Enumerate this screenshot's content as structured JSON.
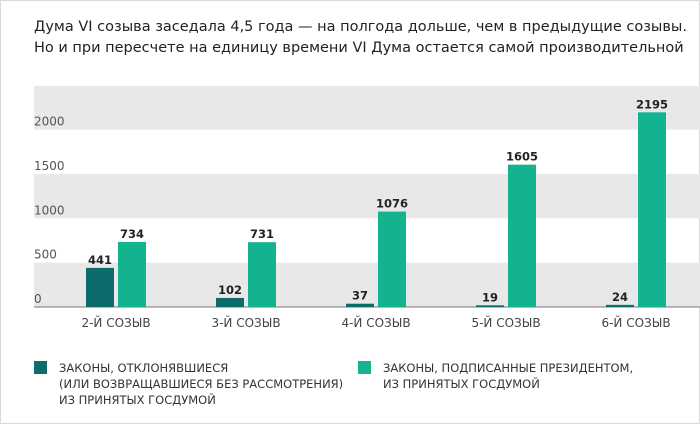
{
  "title_lines": [
    "Дума VI созыва заседала 4,5 года — на полгода дольше, чем в предыдущие созывы.",
    "Но и при пересчете на единицу времени VI Дума остается самой производительной"
  ],
  "colors": {
    "rejected": "#0d6b6b",
    "signed": "#14b38f",
    "band": "#e8e8e8",
    "axis": "#777777"
  },
  "chart_data": {
    "type": "bar",
    "categories": [
      "2-Й СОЗЫВ",
      "3-Й СОЗЫВ",
      "4-Й СОЗЫВ",
      "5-Й СОЗЫВ",
      "6-Й СОЗЫВ"
    ],
    "series": [
      {
        "name": "ЗАКОНЫ, ОТКЛОНЯВШИЕСЯ (ИЛИ ВОЗВРАЩАВШИЕСЯ БЕЗ РАССМОТРЕНИЯ) ИЗ ПРИНЯТЫХ ГОСДУМОЙ",
        "values": [
          441,
          102,
          37,
          19,
          24
        ]
      },
      {
        "name": "ЗАКОНЫ, ПОДПИСАННЫЕ ПРЕЗИДЕНТОМ, ИЗ ПРИНЯТЫХ ГОСДУМОЙ",
        "values": [
          734,
          731,
          1076,
          1605,
          2195
        ]
      }
    ],
    "yticks": [
      0,
      500,
      1000,
      1500,
      2000
    ],
    "ylim": [
      0,
      2400
    ],
    "grid": "alternating bands",
    "legend_position": "bottom"
  },
  "legend": {
    "rejected_lines": [
      "ЗАКОНЫ, ОТКЛОНЯВШИЕСЯ",
      "(ИЛИ ВОЗВРАЩАВШИЕСЯ БЕЗ РАССМОТРЕНИЯ)",
      "ИЗ ПРИНЯТЫХ ГОСДУМОЙ"
    ],
    "signed_lines": [
      "ЗАКОНЫ, ПОДПИСАННЫЕ ПРЕЗИДЕНТОМ,",
      "ИЗ ПРИНЯТЫХ ГОСДУМОЙ"
    ]
  }
}
